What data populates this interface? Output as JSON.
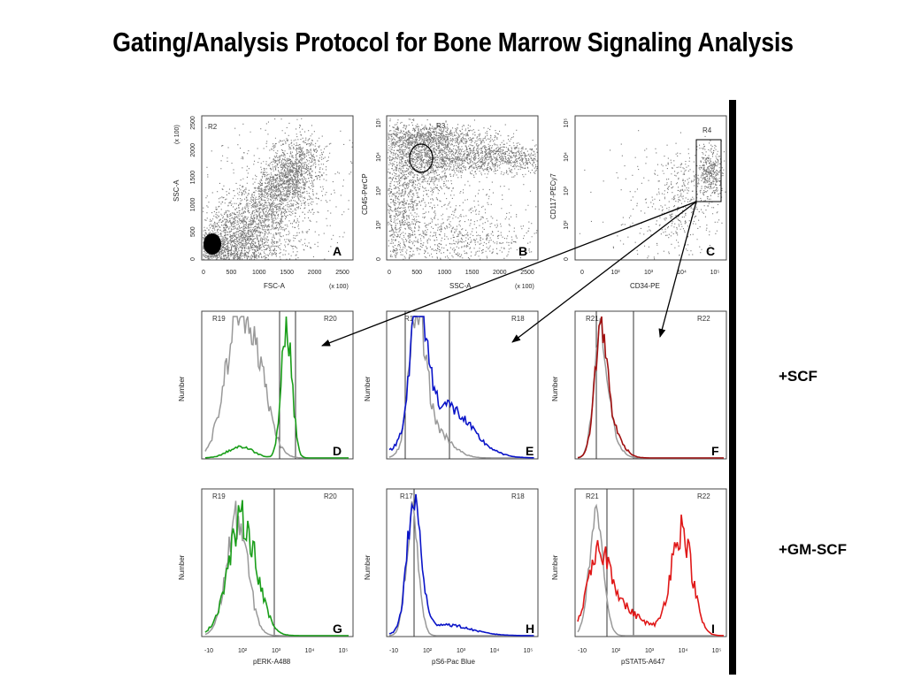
{
  "slide": {
    "title": "Gating/Analysis Protocol for Bone Marrow Signaling Analysis"
  },
  "conditions": {
    "row2": "+SCF",
    "row3": "+GM-SCF"
  },
  "colors": {
    "control": "#999999",
    "green": "#1a9e1a",
    "blue": "#0a14c8",
    "dark_red": "#a01010",
    "red": "#e01818",
    "density": "#555555",
    "arrow": "#000000"
  },
  "panels": {
    "A": {
      "letter": "A",
      "gate": "R2",
      "xlabel": "FSC-A",
      "ylabel": "SSC-A",
      "scale": "(x 100)",
      "xticks": [
        "0",
        "500",
        "1000",
        "1500",
        "2000",
        "2500"
      ],
      "yticks": [
        "0",
        "500",
        "1000",
        "1500",
        "2000",
        "2500"
      ]
    },
    "B": {
      "letter": "B",
      "gate": "R3",
      "xlabel": "SSC-A",
      "ylabel": "CD45-PerCP",
      "scale": "(x 100)",
      "xticks": [
        "0",
        "500",
        "1000",
        "1500",
        "2000",
        "2500"
      ],
      "yticks": [
        "0",
        "10²",
        "10³",
        "10⁴",
        "10⁵"
      ]
    },
    "C": {
      "letter": "C",
      "gate": "R4",
      "xlabel": "CD34-PE",
      "ylabel": "CD117-PECy7",
      "xticks": [
        "0",
        "10²",
        "10³",
        "10⁴",
        "10⁵"
      ],
      "yticks": [
        "0",
        "10²",
        "10³",
        "10⁴",
        "10⁵"
      ]
    },
    "D": {
      "letter": "D",
      "gate_left": "R19",
      "gate_right": "R20",
      "ylabel": "Number"
    },
    "E": {
      "letter": "E",
      "gate_left": "R17",
      "gate_right": "R18",
      "ylabel": "Number"
    },
    "F": {
      "letter": "F",
      "gate_left": "R21",
      "gate_right": "R22",
      "ylabel": "Number"
    },
    "G": {
      "letter": "G",
      "gate_left": "R19",
      "gate_right": "R20",
      "ylabel": "Number",
      "xlabel": "pERK-A488"
    },
    "H": {
      "letter": "H",
      "gate_left": "R17",
      "gate_right": "R18",
      "ylabel": "Number",
      "xlabel": "pS6-Pac Blue"
    },
    "I": {
      "letter": "I",
      "gate_left": "R21",
      "gate_right": "R22",
      "ylabel": "Number",
      "xlabel": "pSTAT5-A647"
    }
  },
  "hist_xticks": [
    "-10",
    "10²",
    "10³",
    "10⁴",
    "10⁵"
  ]
}
